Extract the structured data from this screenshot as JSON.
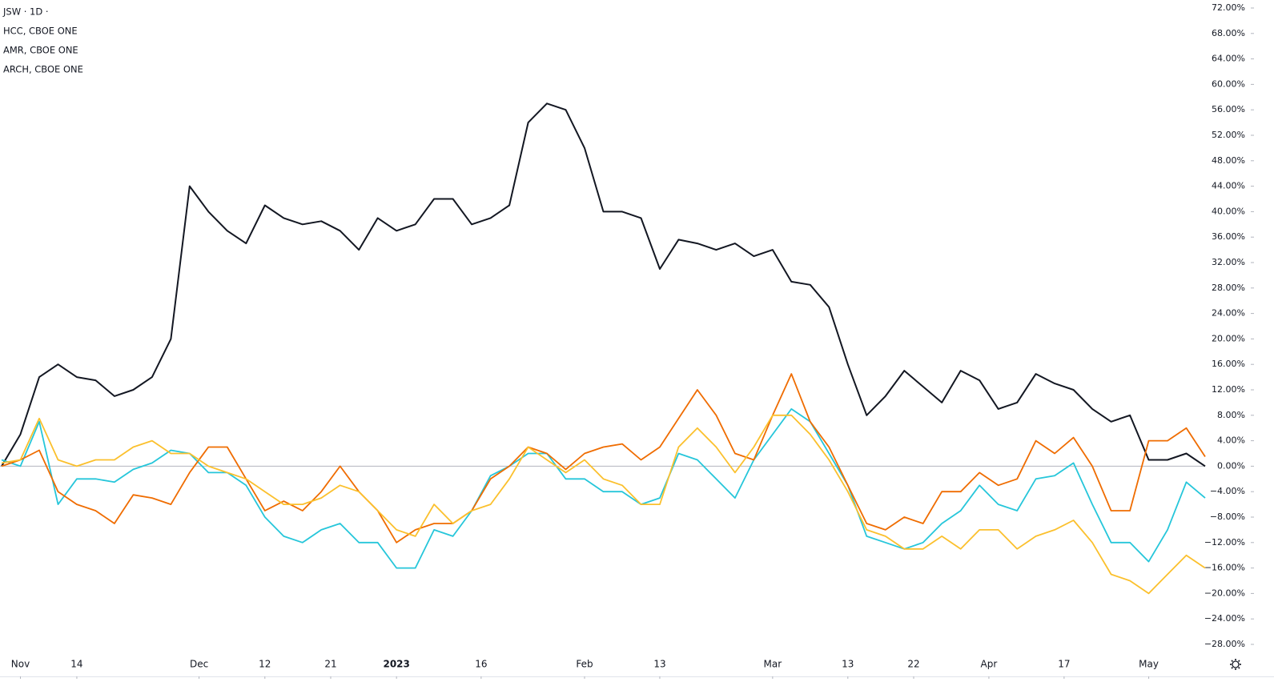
{
  "chart_data": {
    "type": "line",
    "x": [
      0,
      2,
      4,
      6,
      8,
      10,
      12,
      14,
      16,
      18,
      20,
      22,
      24,
      26,
      28,
      30,
      32,
      34,
      36,
      38,
      40,
      42,
      44,
      46,
      48,
      50,
      52,
      54,
      56,
      58,
      60,
      62,
      64,
      66,
      68,
      70,
      72,
      74,
      76,
      78,
      80,
      82,
      84,
      86,
      88,
      90,
      92,
      94,
      96,
      98,
      100,
      102,
      104,
      106,
      108,
      110,
      112,
      114,
      116,
      118,
      120,
      122,
      124,
      126,
      128
    ],
    "xlim": [
      0,
      128
    ],
    "xticks": [
      {
        "value": 2,
        "label": "Nov"
      },
      {
        "value": 8,
        "label": "14"
      },
      {
        "value": 21,
        "label": "Dec"
      },
      {
        "value": 28,
        "label": "12"
      },
      {
        "value": 35,
        "label": "21"
      },
      {
        "value": 42,
        "label": "2023",
        "bold": true
      },
      {
        "value": 51,
        "label": "16"
      },
      {
        "value": 62,
        "label": "Feb"
      },
      {
        "value": 70,
        "label": "13"
      },
      {
        "value": 82,
        "label": "Mar"
      },
      {
        "value": 90,
        "label": "13"
      },
      {
        "value": 97,
        "label": "22"
      },
      {
        "value": 105,
        "label": "Apr"
      },
      {
        "value": 113,
        "label": "17"
      },
      {
        "value": 122,
        "label": "May"
      }
    ],
    "ylim": [
      -28,
      72
    ],
    "yticks": [
      {
        "value": -28,
        "label": "−28.00%"
      },
      {
        "value": -24,
        "label": "−24.00%"
      },
      {
        "value": -20,
        "label": "−20.00%"
      },
      {
        "value": -16,
        "label": "−16.00%"
      },
      {
        "value": -12,
        "label": "−12.00%"
      },
      {
        "value": -8,
        "label": "−8.00%"
      },
      {
        "value": -4,
        "label": "−4.00%"
      },
      {
        "value": 0,
        "label": "0.00%"
      },
      {
        "value": 4,
        "label": "4.00%"
      },
      {
        "value": 8,
        "label": "8.00%"
      },
      {
        "value": 12,
        "label": "12.00%"
      },
      {
        "value": 16,
        "label": "16.00%"
      },
      {
        "value": 20,
        "label": "20.00%"
      },
      {
        "value": 24,
        "label": "24.00%"
      },
      {
        "value": 28,
        "label": "28.00%"
      },
      {
        "value": 32,
        "label": "32.00%"
      },
      {
        "value": 36,
        "label": "36.00%"
      },
      {
        "value": 40,
        "label": "40.00%"
      },
      {
        "value": 44,
        "label": "44.00%"
      },
      {
        "value": 48,
        "label": "48.00%"
      },
      {
        "value": 52,
        "label": "52.00%"
      },
      {
        "value": 56,
        "label": "56.00%"
      },
      {
        "value": 60,
        "label": "60.00%"
      },
      {
        "value": 64,
        "label": "64.00%"
      },
      {
        "value": 68,
        "label": "68.00%"
      },
      {
        "value": 72,
        "label": "72.00%"
      }
    ],
    "baseline": 0,
    "series": [
      {
        "name": "JSW · 1D ·",
        "color": "#131722",
        "values": [
          0,
          5,
          14,
          16,
          14,
          13.5,
          11,
          12,
          14,
          20,
          44,
          40,
          37,
          35,
          41,
          39,
          38,
          38.5,
          37,
          34,
          39,
          37,
          38,
          42,
          42,
          38,
          39,
          41,
          54,
          57,
          56,
          50,
          40,
          40,
          39,
          31,
          35.6,
          35,
          34,
          35,
          33,
          34,
          29,
          28.5,
          25,
          16,
          8,
          11,
          15,
          12.5,
          10,
          15,
          13.5,
          9,
          10,
          14.5,
          13,
          12,
          9,
          7,
          8,
          1,
          1,
          2,
          0
        ]
      },
      {
        "name": "HCC, CBOE ONE",
        "color": "#26c6da",
        "values": [
          1,
          0,
          7,
          -6,
          -2,
          -2,
          -2.5,
          -0.5,
          0.5,
          2.5,
          2,
          -1,
          -1,
          -3,
          -8,
          -11,
          -12,
          -10,
          -9,
          -12,
          -12,
          -16,
          -16,
          -10,
          -11,
          -7,
          -1.5,
          0,
          2,
          2,
          -2,
          -2,
          -4,
          -4,
          -6,
          -5,
          2,
          1,
          -2,
          -5,
          1,
          5,
          9,
          7,
          2,
          -3,
          -11,
          -12,
          -13,
          -12,
          -9,
          -7,
          -3,
          -6,
          -7,
          -2,
          -1.5,
          0.5,
          -6,
          -12,
          -12,
          -15,
          -10,
          -2.5,
          -5
        ]
      },
      {
        "name": "AMR, CBOE ONE",
        "color": "#ef6c00",
        "values": [
          0,
          1,
          2.5,
          -4,
          -6,
          -7,
          -9,
          -4.5,
          -5,
          -6,
          -1,
          3,
          3,
          -2,
          -7,
          -5.5,
          -7,
          -4,
          0,
          -4,
          -7,
          -12,
          -10,
          -9,
          -9,
          -7,
          -2,
          0,
          3,
          2,
          -0.5,
          2,
          3,
          3.5,
          1,
          3,
          7.5,
          12,
          8,
          2,
          1,
          8,
          14.5,
          7,
          3,
          -3,
          -9,
          -10,
          -8,
          -9,
          -4,
          -4,
          -1,
          -3,
          -2,
          4,
          2,
          4.5,
          0,
          -7,
          -7,
          4,
          4,
          6,
          1.5
        ]
      },
      {
        "name": "ARCH, CBOE ONE",
        "color": "#fbc02d",
        "values": [
          0.5,
          1,
          7.5,
          1,
          0,
          1,
          1,
          3,
          4,
          2,
          2,
          0,
          -1,
          -2,
          -4,
          -6,
          -6,
          -5,
          -3,
          -4,
          -7,
          -10,
          -11,
          -6,
          -9,
          -7,
          -6,
          -2,
          3,
          1,
          -1,
          1,
          -2,
          -3,
          -6,
          -6,
          3,
          6,
          3,
          -1,
          3,
          8,
          8,
          5,
          1,
          -4,
          -10,
          -11,
          -13,
          -13,
          -11,
          -13,
          -10,
          -10,
          -13,
          -11,
          -10,
          -8.5,
          -12,
          -17,
          -18,
          -20,
          -17,
          -14,
          -16
        ]
      }
    ]
  }
}
